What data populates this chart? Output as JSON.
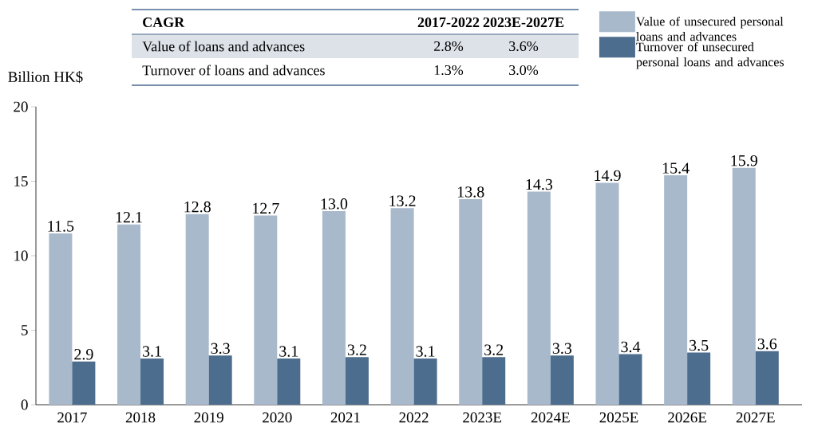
{
  "chart_data": {
    "type": "bar",
    "ylabel": "Billion HK$",
    "categories": [
      "2017",
      "2018",
      "2019",
      "2020",
      "2021",
      "2022",
      "2023E",
      "2024E",
      "2025E",
      "2026E",
      "2027E"
    ],
    "series": [
      {
        "name": "Value of unsecured personal loans and advances",
        "color": "#a9b9cc",
        "values": [
          11.5,
          12.1,
          12.8,
          12.7,
          13.0,
          13.2,
          13.8,
          14.3,
          14.9,
          15.4,
          15.9
        ],
        "value_labels": [
          "11.5",
          "12.1",
          "12.8",
          "12.7",
          "13.0",
          "13.2",
          "13.8",
          "14.3",
          "14.9",
          "15.4",
          "15.9"
        ]
      },
      {
        "name": "Turnover of unsecured personal loans and advances",
        "color": "#4d6d8e",
        "values": [
          2.9,
          3.1,
          3.3,
          3.1,
          3.2,
          3.1,
          3.2,
          3.3,
          3.4,
          3.5,
          3.6
        ],
        "value_labels": [
          "2.9",
          "3.1",
          "3.3",
          "3.1",
          "3.2",
          "3.1",
          "3.2",
          "3.3",
          "3.4",
          "3.5",
          "3.6"
        ]
      }
    ],
    "ylim": [
      0,
      20
    ],
    "yticks": [
      0,
      5,
      10,
      15,
      20
    ],
    "legend": "top right",
    "annotations": [
      "CAGR",
      "2017-2022",
      "2023E-2027E",
      "Value of loans and advances",
      "2.8%",
      "3.6%",
      "Turnover of loans and advances",
      "1.3%",
      "3.0%"
    ]
  }
}
